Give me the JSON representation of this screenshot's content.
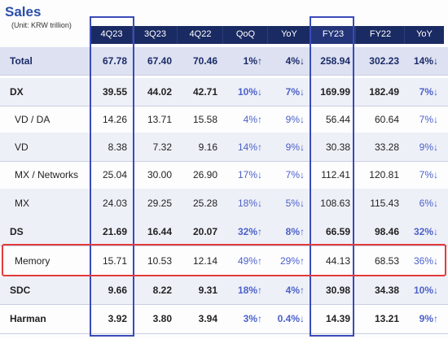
{
  "title": "Sales",
  "unit": "(Unit: KRW trillion)",
  "columns": [
    "4Q23",
    "3Q23",
    "4Q22",
    "QoQ",
    "YoY",
    "FY23",
    "FY22",
    "YoY"
  ],
  "rows": [
    {
      "label": "Total",
      "values": [
        "67.78",
        "67.40",
        "70.46",
        "1%↑",
        "4%↓",
        "258.94",
        "302.23",
        "14%↓"
      ]
    },
    {
      "label": "DX",
      "values": [
        "39.55",
        "44.02",
        "42.71",
        "10%↓",
        "7%↓",
        "169.99",
        "182.49",
        "7%↓"
      ]
    },
    {
      "label": "VD / DA",
      "values": [
        "14.26",
        "13.71",
        "15.58",
        "4%↑",
        "9%↓",
        "56.44",
        "60.64",
        "7%↓"
      ]
    },
    {
      "label": "VD",
      "values": [
        "8.38",
        "7.32",
        "9.16",
        "14%↑",
        "9%↓",
        "30.38",
        "33.28",
        "9%↓"
      ]
    },
    {
      "label": "MX / Networks",
      "values": [
        "25.04",
        "30.00",
        "26.90",
        "17%↓",
        "7%↓",
        "112.41",
        "120.81",
        "7%↓"
      ]
    },
    {
      "label": "MX",
      "values": [
        "24.03",
        "29.25",
        "25.28",
        "18%↓",
        "5%↓",
        "108.63",
        "115.43",
        "6%↓"
      ]
    },
    {
      "label": "DS",
      "values": [
        "21.69",
        "16.44",
        "20.07",
        "32%↑",
        "8%↑",
        "66.59",
        "98.46",
        "32%↓"
      ]
    },
    {
      "label": "Memory",
      "values": [
        "15.71",
        "10.53",
        "12.14",
        "49%↑",
        "29%↑",
        "44.13",
        "68.53",
        "36%↓"
      ]
    },
    {
      "label": "SDC",
      "values": [
        "9.66",
        "8.22",
        "9.31",
        "18%↑",
        "4%↑",
        "30.98",
        "34.38",
        "10%↓"
      ]
    },
    {
      "label": "Harman",
      "values": [
        "3.92",
        "3.80",
        "3.94",
        "3%↑",
        "0.4%↓",
        "14.39",
        "13.21",
        "9%↑"
      ]
    }
  ]
}
